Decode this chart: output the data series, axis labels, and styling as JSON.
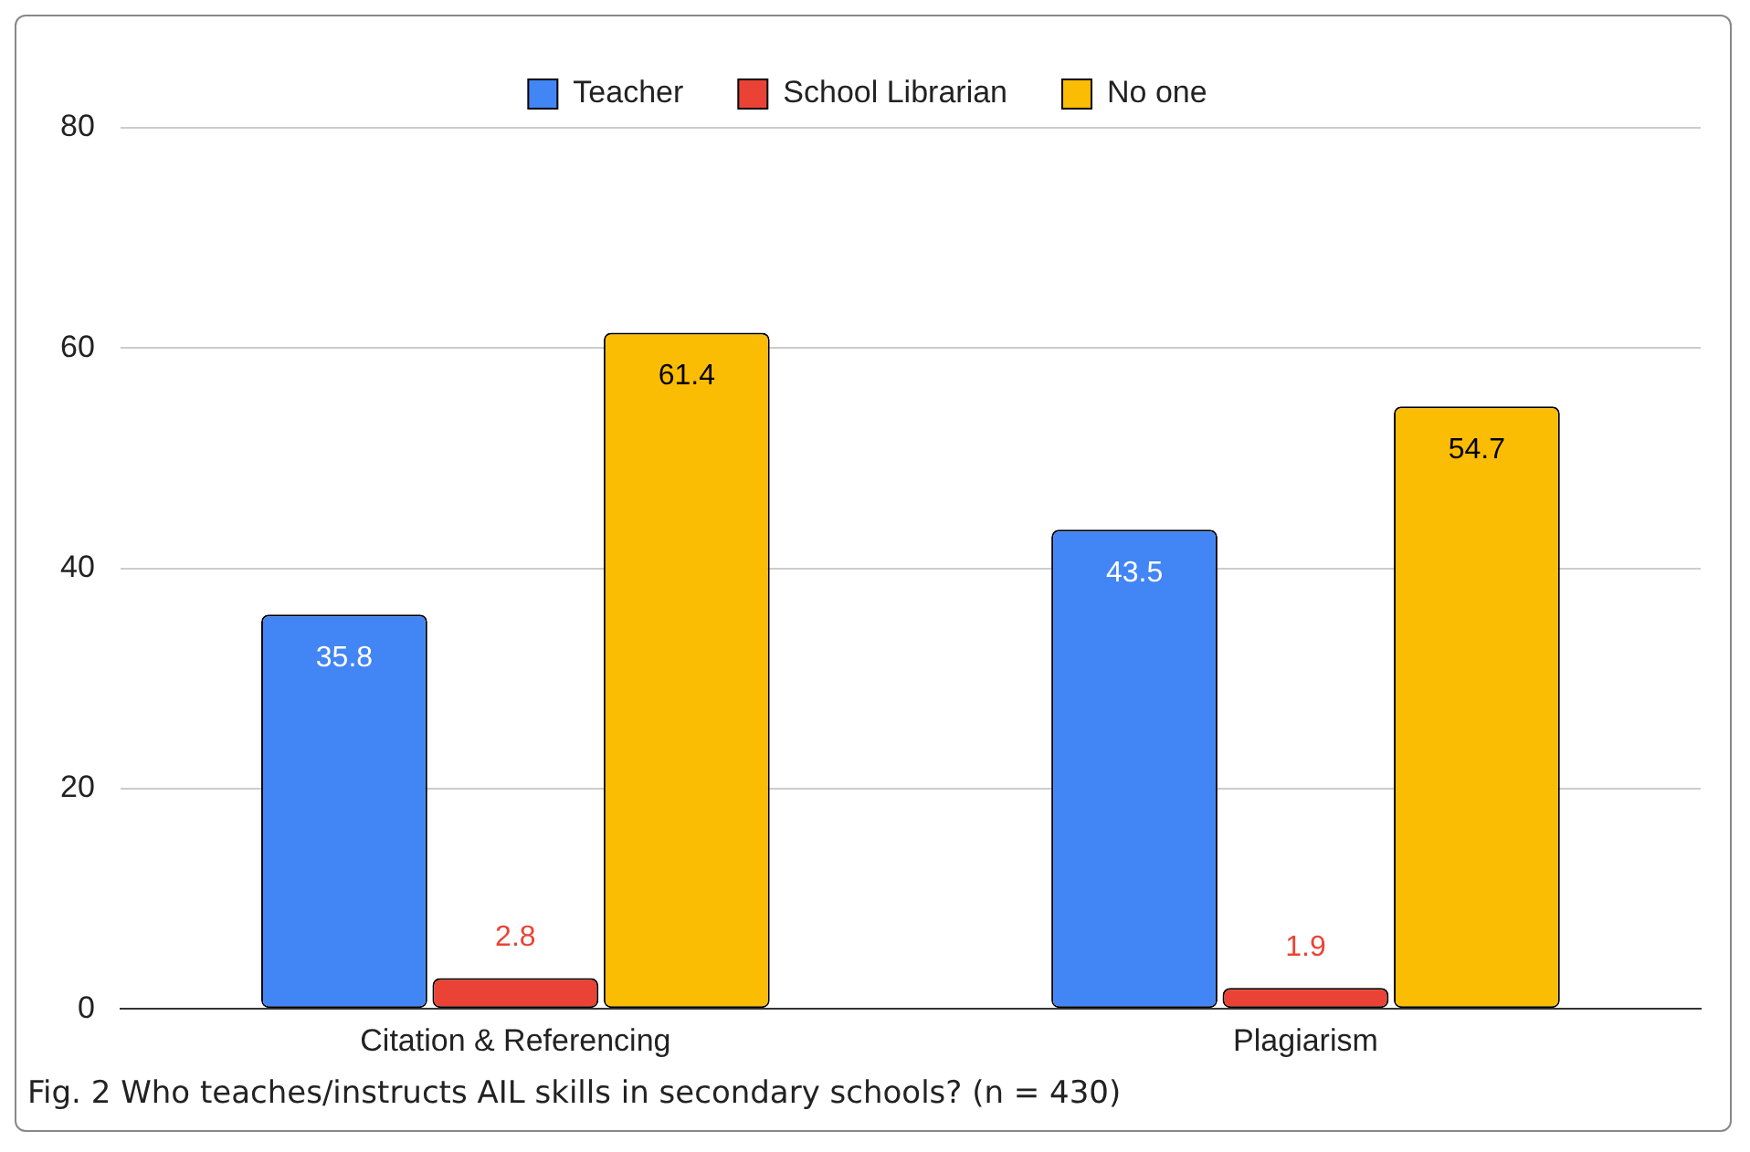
{
  "chart_data": {
    "type": "bar",
    "categories": [
      "Citation & Referencing",
      "Plagiarism"
    ],
    "series": [
      {
        "name": "Teacher",
        "color": "#4285f4",
        "values": [
          35.8,
          43.5
        ]
      },
      {
        "name": "School Librarian",
        "color": "#ea4335",
        "values": [
          2.8,
          1.9
        ]
      },
      {
        "name": "No one",
        "color": "#fbbc04",
        "values": [
          61.4,
          54.7
        ]
      }
    ],
    "ylim": [
      0,
      80
    ],
    "yticks": [
      0,
      20,
      40,
      60,
      80
    ],
    "grid": "y",
    "legend": "top",
    "data_labels": true,
    "annotations": [
      "Fig. 2 Who teaches/instructs AIL skills in secondary schools? (n = 430)"
    ]
  }
}
